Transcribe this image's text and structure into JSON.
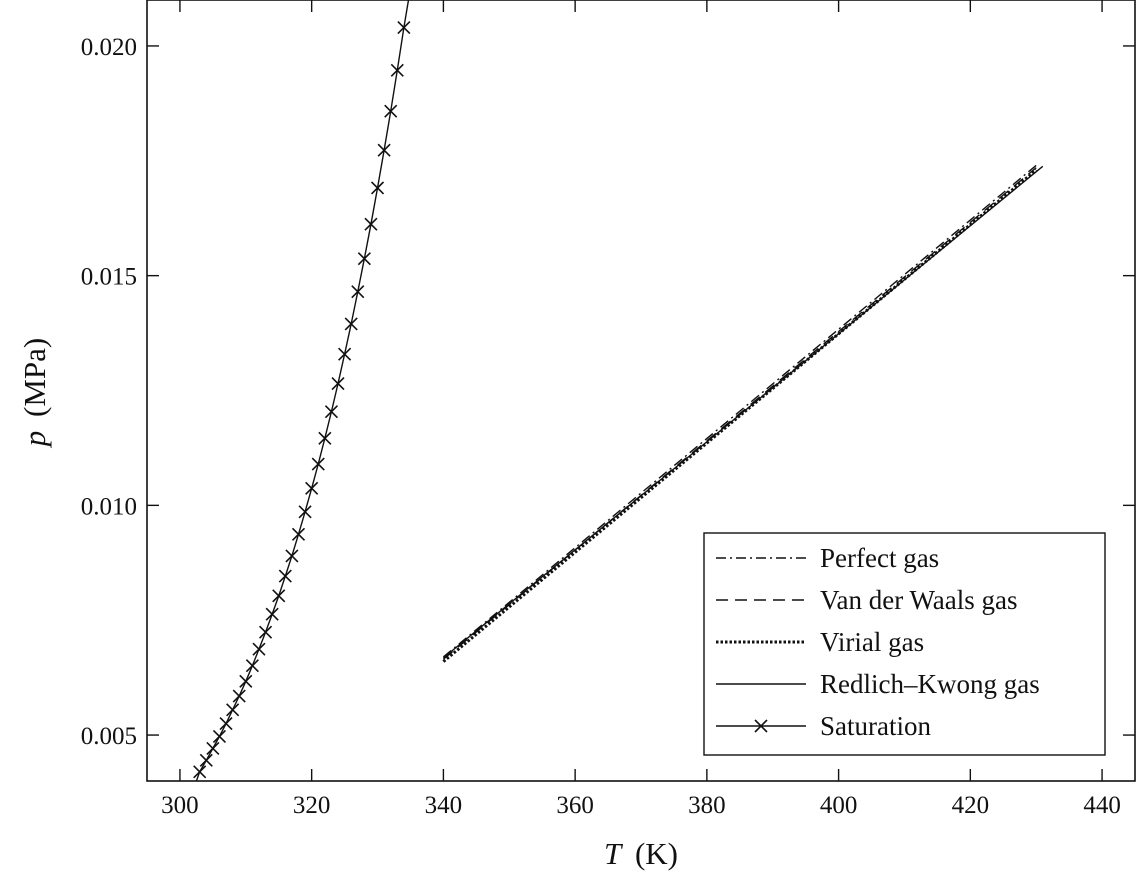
{
  "chart_data": {
    "type": "line",
    "title": "",
    "xlabel": {
      "symbol": "T",
      "unit": "(K)"
    },
    "ylabel": {
      "symbol": "p",
      "unit": "(MPa)"
    },
    "xlim": [
      295,
      445
    ],
    "ylim": [
      0.004,
      0.021
    ],
    "xticks": [
      300,
      320,
      340,
      360,
      380,
      400,
      420,
      440
    ],
    "yticks": [
      0.005,
      0.01,
      0.015,
      0.02
    ],
    "ytick_labels": [
      "0.005",
      "0.010",
      "0.015",
      "0.020"
    ],
    "grid": false,
    "legend": "lower-right",
    "series": [
      {
        "name": "Perfect gas",
        "style": "dashdot",
        "color": "#111111",
        "x": [
          340,
          430
        ],
        "y": [
          0.0067,
          0.0174
        ]
      },
      {
        "name": "Van der Waals gas",
        "style": "dashed",
        "color": "#111111",
        "x": [
          340,
          430
        ],
        "y": [
          0.00665,
          0.01735
        ]
      },
      {
        "name": "Virial gas",
        "style": "dotted",
        "color": "#111111",
        "x": [
          340,
          430
        ],
        "y": [
          0.0066,
          0.0173
        ]
      },
      {
        "name": "Redlich–Kwong gas",
        "style": "solid",
        "color": "#111111",
        "x": [
          340,
          431
        ],
        "y": [
          0.00668,
          0.01738
        ]
      },
      {
        "name": "Saturation",
        "style": "solid-x",
        "color": "#111111",
        "x": [
          302.5,
          303,
          304,
          305,
          306,
          307,
          308,
          309,
          310,
          311,
          312,
          313,
          314,
          315,
          316,
          317,
          318,
          319,
          320,
          321,
          322,
          323,
          324,
          325,
          326,
          327,
          328,
          329,
          330,
          331,
          332,
          333,
          334,
          334.7
        ],
        "y": [
          0.004,
          0.0042,
          0.00445,
          0.00471,
          0.00497,
          0.00525,
          0.00555,
          0.00585,
          0.00617,
          0.00651,
          0.00687,
          0.00724,
          0.00763,
          0.00803,
          0.00846,
          0.0089,
          0.00937,
          0.00986,
          0.01037,
          0.0109,
          0.01146,
          0.01204,
          0.01265,
          0.01329,
          0.01395,
          0.01465,
          0.01537,
          0.01612,
          0.01691,
          0.01773,
          0.01858,
          0.01947,
          0.0204,
          0.021
        ]
      }
    ]
  }
}
